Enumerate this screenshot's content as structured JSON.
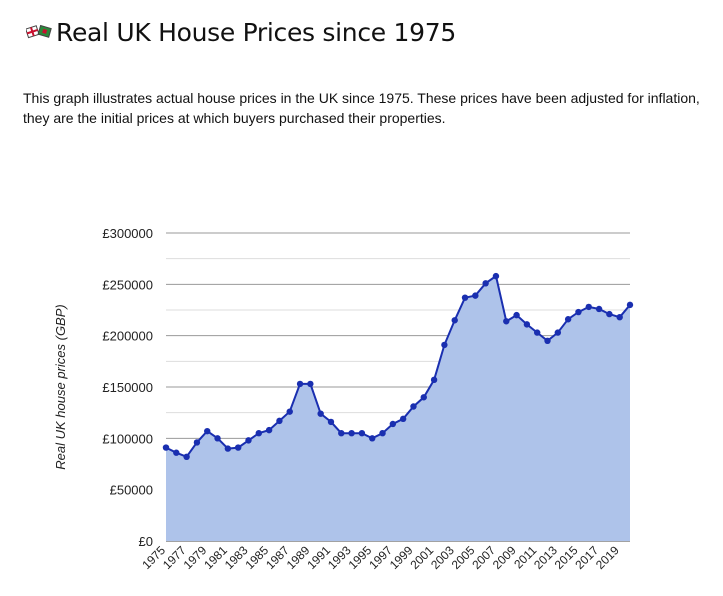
{
  "page": {
    "title": "Real UK House Prices since 1975",
    "logo_icon": "uk-gb-flags-logo-icon",
    "description_line1": "This graph illustrates actual house prices in the UK since 1975. These prices have been adjusted for inflation,",
    "description_line2": "they are the initial prices at which buyers purchased their properties."
  },
  "chart_data": {
    "type": "area",
    "title": "",
    "xlabel": "",
    "ylabel": "Real UK house prices (GBP)",
    "ylim": [
      0,
      300000
    ],
    "yticks": [
      0,
      50000,
      100000,
      150000,
      200000,
      250000,
      300000
    ],
    "ytick_labels": [
      "£0",
      "£50000",
      "£100000",
      "£150000",
      "£200000",
      "£250000",
      "£300000"
    ],
    "xtick_labels": [
      "1975",
      "1977",
      "1979",
      "1981",
      "1983",
      "1985",
      "1987",
      "1989",
      "1991",
      "1993",
      "1995",
      "1997",
      "1999",
      "2001",
      "2003",
      "2005",
      "2007",
      "2009",
      "2011",
      "2013",
      "2015",
      "2017",
      "2019"
    ],
    "grid": true,
    "colors": {
      "line": "#1a2fb0",
      "fill": "#aec3ea",
      "grid_major": "#999999",
      "grid_minor": "#dddddd",
      "marker": "#1a2fb0"
    },
    "series": [
      {
        "x": [
          1975,
          1976,
          1977,
          1978,
          1979,
          1980,
          1981,
          1982,
          1983,
          1984,
          1985,
          1986,
          1987,
          1988,
          1989,
          1990,
          1991,
          1992,
          1993,
          1994,
          1995,
          1996,
          1997,
          1998,
          1999,
          2000,
          2001,
          2002,
          2003,
          2004,
          2005,
          2006,
          2007,
          2008,
          2009,
          2010,
          2011,
          2012,
          2013,
          2014,
          2015,
          2016,
          2017,
          2018,
          2019,
          2020
        ],
        "y": [
          91000,
          86000,
          82000,
          96000,
          107000,
          100000,
          90000,
          91000,
          98000,
          105000,
          108000,
          117000,
          126000,
          153000,
          153000,
          124000,
          116000,
          105000,
          105000,
          105000,
          100000,
          105000,
          114000,
          119000,
          131000,
          140000,
          157000,
          191000,
          215000,
          237000,
          239000,
          251000,
          258000,
          214000,
          220000,
          211000,
          203000,
          195000,
          203000,
          216000,
          223000,
          228000,
          226000,
          221000,
          218000,
          230000
        ]
      }
    ]
  }
}
